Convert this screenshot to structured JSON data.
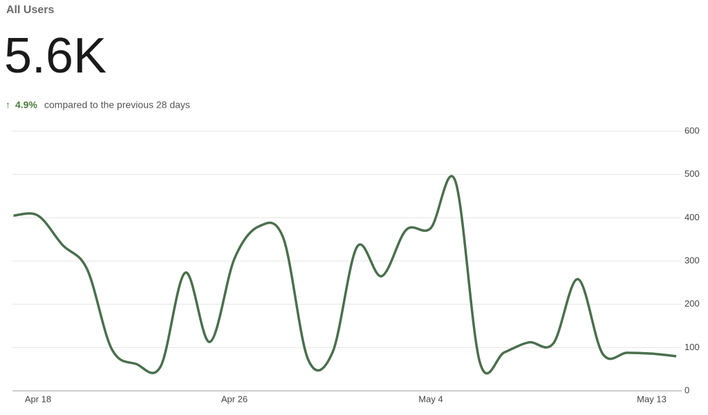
{
  "header": {
    "title": "All Users",
    "metric": "5.6K",
    "trend_arrow": "↑",
    "change": "4.9%",
    "comparison": "compared to the previous 28 days"
  },
  "chart_data": {
    "type": "line",
    "categories": [
      null,
      "Apr 18",
      null,
      null,
      null,
      null,
      null,
      null,
      null,
      "Apr 26",
      null,
      null,
      null,
      null,
      null,
      null,
      null,
      "May 4",
      null,
      null,
      null,
      null,
      null,
      null,
      null,
      null,
      "May 13",
      null
    ],
    "series": [
      {
        "name": "All Users",
        "color": "#4a6f4d",
        "values": [
          405,
          405,
          337,
          281,
          97,
          62,
          57,
          273,
          113,
          305,
          380,
          352,
          73,
          89,
          333,
          265,
          372,
          376,
          485,
          66,
          89,
          112,
          110,
          258,
          86,
          88,
          86,
          80
        ]
      }
    ],
    "ylim": [
      0,
      600
    ],
    "yticks": [
      0,
      100,
      200,
      300,
      400,
      500,
      600
    ],
    "grid": true
  }
}
